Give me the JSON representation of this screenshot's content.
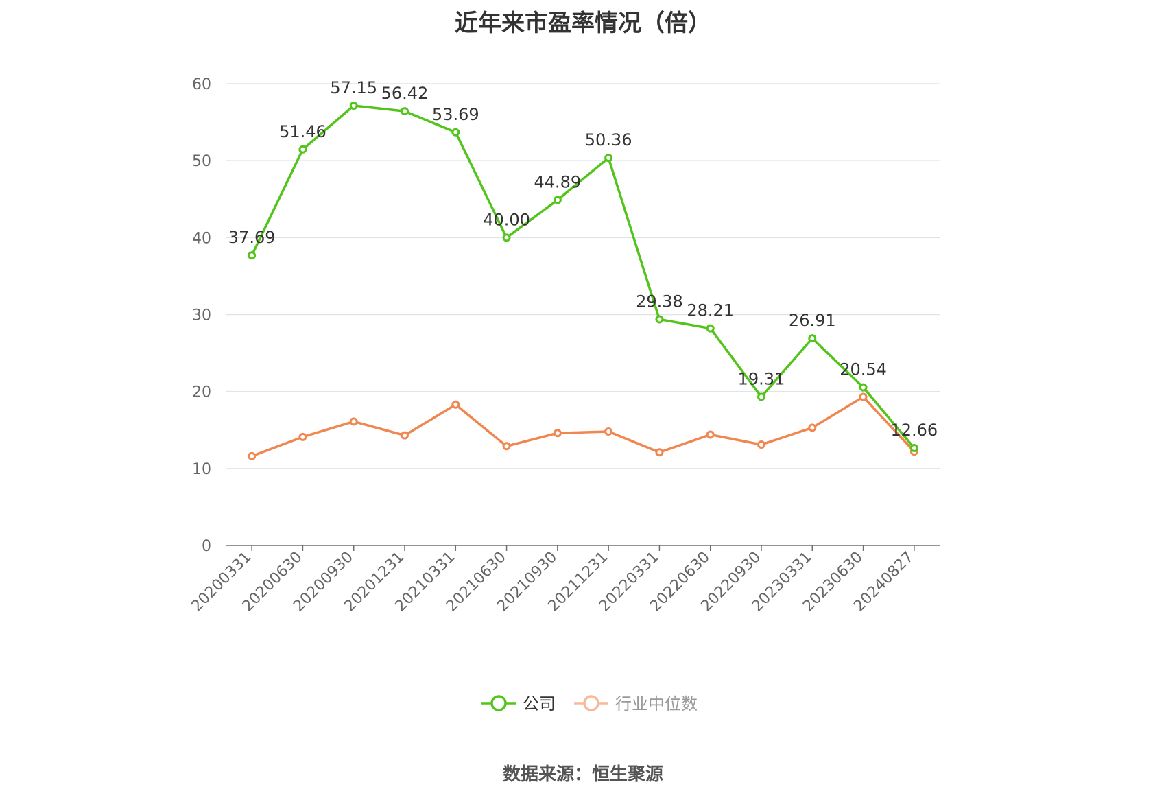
{
  "chart_data": {
    "type": "line",
    "title": "近年来市盈率情况（倍）",
    "source": "数据来源：恒生聚源",
    "categories": [
      "20200331",
      "20200630",
      "20200930",
      "20201231",
      "20210331",
      "20210630",
      "20210930",
      "20211231",
      "20220331",
      "20220630",
      "20220930",
      "20230331",
      "20230630",
      "20240827"
    ],
    "ylim": [
      0,
      60
    ],
    "yticks": [
      0,
      10,
      20,
      30,
      40,
      50,
      60
    ],
    "grid": true,
    "legend_position": "bottom",
    "series": [
      {
        "name": "公司",
        "color": "#52c41a",
        "values": [
          37.69,
          51.46,
          57.15,
          56.42,
          53.69,
          40.0,
          44.89,
          50.36,
          29.38,
          28.21,
          19.31,
          26.91,
          20.54,
          12.66
        ],
        "labels": [
          "37.69",
          "51.46",
          "57.15",
          "56.42",
          "53.69",
          "40.00",
          "44.89",
          "50.36",
          "29.38",
          "28.21",
          "19.31",
          "26.91",
          "20.54",
          "12.66"
        ]
      },
      {
        "name": "行业中位数",
        "color": "#f08650",
        "legend_color": "#f7b99a",
        "values": [
          11.6,
          14.1,
          16.1,
          14.3,
          18.3,
          12.9,
          14.6,
          14.8,
          12.1,
          14.4,
          13.1,
          15.3,
          19.3,
          12.2
        ]
      }
    ]
  }
}
